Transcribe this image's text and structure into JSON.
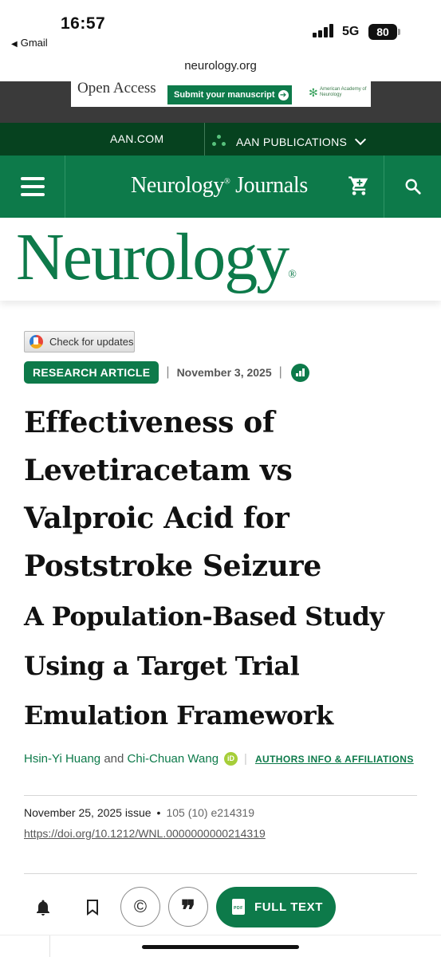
{
  "status_bar": {
    "time": "16:57",
    "back_app": "Gmail",
    "network": "5G",
    "battery": "80"
  },
  "browser": {
    "url": "neurology.org"
  },
  "ad_banner": {
    "open_access": "Open Access",
    "submit": "Submit your manuscript",
    "aan_logo_text": "American Academy of Neurology"
  },
  "top_nav": {
    "aan_com": "AAN.COM",
    "aan_publications": "AAN PUBLICATIONS"
  },
  "journals_header": {
    "title": "Neurology",
    "title_mark": "®",
    "title_suffix": " Journals"
  },
  "journal_logo": {
    "name": "Neurology",
    "mark": "®"
  },
  "article": {
    "check_updates": "Check for updates",
    "type": "RESEARCH ARTICLE",
    "date": "November 3, 2025",
    "title": "Effectiveness of Levetiracetam vs Valproic Acid for Poststroke Seizure",
    "subtitle": "A Population-Based Study Using a Target Trial Emulation Framework",
    "authors": [
      "Hsin-Yi Huang",
      "Chi-Chuan Wang"
    ],
    "author_joiner": "and",
    "orcid_label": "iD",
    "authors_info": "AUTHORS INFO & AFFILIATIONS",
    "issue": "November 25, 2025 issue",
    "volume": "105 (10) e214319",
    "doi": "https://doi.org/10.1212/WNL.0000000000214319"
  },
  "toolbar": {
    "full_text": "FULL TEXT",
    "pdf_label": "PDF",
    "copyright_symbol": "©",
    "cite_symbol": "❞"
  },
  "colors": {
    "brand_green": "#0d7a4a",
    "dark_green": "#06421f"
  }
}
